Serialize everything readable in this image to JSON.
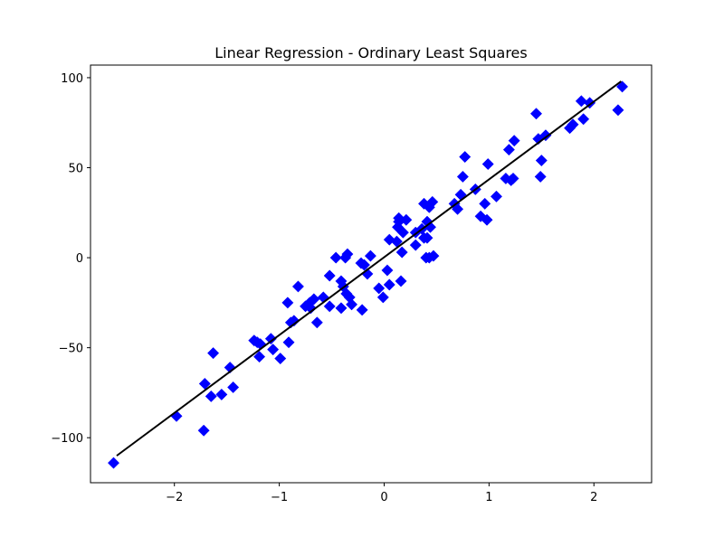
{
  "chart_data": {
    "type": "scatter",
    "title": "Linear Regression - Ordinary Least Squares",
    "xlabel": "",
    "ylabel": "",
    "xlim": [
      -2.8,
      2.55
    ],
    "ylim": [
      -125,
      107
    ],
    "xticks": [
      -2,
      -1,
      0,
      1,
      2
    ],
    "xtick_labels": [
      "−2",
      "−1",
      "0",
      "1",
      "2"
    ],
    "yticks": [
      -100,
      -50,
      0,
      50,
      100
    ],
    "ytick_labels": [
      "−100",
      "−50",
      "0",
      "50",
      "100"
    ],
    "grid": false,
    "legend": "none",
    "marker": "diamond",
    "point_color": "#0000ff",
    "line_color": "#000000",
    "series": [
      {
        "kind": "scatter",
        "points": [
          [
            -2.58,
            -114
          ],
          [
            -1.98,
            -88
          ],
          [
            -1.72,
            -96
          ],
          [
            -1.71,
            -70
          ],
          [
            -1.65,
            -77
          ],
          [
            -1.63,
            -53
          ],
          [
            -1.55,
            -76
          ],
          [
            -1.47,
            -61
          ],
          [
            -1.44,
            -72
          ],
          [
            -1.24,
            -46
          ],
          [
            -1.21,
            -47
          ],
          [
            -1.19,
            -55
          ],
          [
            -1.18,
            -48
          ],
          [
            -1.08,
            -45
          ],
          [
            -1.06,
            -51
          ],
          [
            -0.99,
            -56
          ],
          [
            -0.92,
            -25
          ],
          [
            -0.91,
            -47
          ],
          [
            -0.89,
            -36
          ],
          [
            -0.86,
            -35
          ],
          [
            -0.82,
            -16
          ],
          [
            -0.75,
            -27
          ],
          [
            -0.71,
            -25
          ],
          [
            -0.7,
            -28
          ],
          [
            -0.67,
            -23
          ],
          [
            -0.64,
            -36
          ],
          [
            -0.58,
            -22
          ],
          [
            -0.52,
            -27
          ],
          [
            -0.52,
            -10
          ],
          [
            -0.46,
            0
          ],
          [
            -0.41,
            -13
          ],
          [
            -0.41,
            -28
          ],
          [
            -0.39,
            -16
          ],
          [
            -0.37,
            0
          ],
          [
            -0.36,
            -20
          ],
          [
            -0.35,
            2
          ],
          [
            -0.33,
            -22
          ],
          [
            -0.31,
            -26
          ],
          [
            -0.22,
            -3
          ],
          [
            -0.21,
            -29
          ],
          [
            -0.19,
            -4
          ],
          [
            -0.16,
            -9
          ],
          [
            -0.13,
            1
          ],
          [
            -0.05,
            -17
          ],
          [
            -0.01,
            -22
          ],
          [
            0.03,
            -7
          ],
          [
            0.05,
            -15
          ],
          [
            0.05,
            10
          ],
          [
            0.12,
            9
          ],
          [
            0.13,
            17
          ],
          [
            0.14,
            20
          ],
          [
            0.14,
            22
          ],
          [
            0.16,
            -13
          ],
          [
            0.17,
            3
          ],
          [
            0.18,
            14
          ],
          [
            0.21,
            21
          ],
          [
            0.3,
            7
          ],
          [
            0.3,
            14
          ],
          [
            0.36,
            16
          ],
          [
            0.38,
            11
          ],
          [
            0.38,
            30
          ],
          [
            0.4,
            0
          ],
          [
            0.41,
            20
          ],
          [
            0.41,
            11
          ],
          [
            0.43,
            28
          ],
          [
            0.43,
            0
          ],
          [
            0.44,
            17
          ],
          [
            0.46,
            31
          ],
          [
            0.47,
            1
          ],
          [
            0.67,
            30
          ],
          [
            0.7,
            27
          ],
          [
            0.73,
            35
          ],
          [
            0.75,
            45
          ],
          [
            0.77,
            56
          ],
          [
            0.87,
            38
          ],
          [
            0.92,
            23
          ],
          [
            0.96,
            30
          ],
          [
            0.98,
            21
          ],
          [
            0.99,
            52
          ],
          [
            1.07,
            34
          ],
          [
            1.16,
            44
          ],
          [
            1.19,
            60
          ],
          [
            1.21,
            43
          ],
          [
            1.23,
            44
          ],
          [
            1.24,
            65
          ],
          [
            1.45,
            80
          ],
          [
            1.47,
            66
          ],
          [
            1.49,
            45
          ],
          [
            1.5,
            54
          ],
          [
            1.54,
            68
          ],
          [
            1.77,
            72
          ],
          [
            1.8,
            74
          ],
          [
            1.88,
            87
          ],
          [
            1.9,
            77
          ],
          [
            1.96,
            86
          ],
          [
            2.23,
            82
          ],
          [
            2.27,
            95
          ]
        ]
      },
      {
        "kind": "line",
        "points": [
          [
            -2.55,
            -110
          ],
          [
            2.26,
            98
          ]
        ]
      }
    ]
  }
}
